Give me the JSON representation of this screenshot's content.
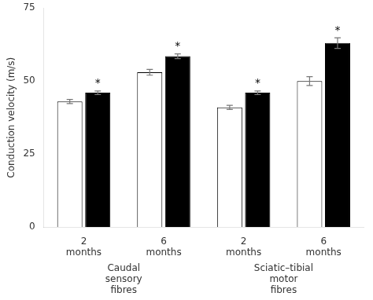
{
  "chart_data": {
    "type": "bar",
    "ylabel": "Conduction velocity (m/s)",
    "categories": [
      "2\nmonths",
      "6\nmonths",
      "2\nmonths",
      "6\nmonths"
    ],
    "category_groups": [
      {
        "label": "Caudal\nsensory\nfibres",
        "size": 2
      },
      {
        "label": "Sciatic–tibial\nmotor\nfibres",
        "size": 2
      }
    ],
    "series": [
      {
        "color": "#ffffff",
        "values": [
          43.0,
          53.0,
          41.0,
          50.0
        ],
        "errors": [
          0.7,
          1.0,
          0.7,
          1.5
        ]
      },
      {
        "color": "#000000",
        "values": [
          46.0,
          58.5,
          46.0,
          63.0
        ],
        "errors": [
          0.6,
          0.8,
          0.6,
          1.8
        ],
        "annotations": [
          "*",
          "*",
          "*",
          "*"
        ]
      }
    ],
    "ylim": [
      0,
      75
    ],
    "yticks": [
      0,
      25,
      50,
      75
    ],
    "grid": false
  }
}
